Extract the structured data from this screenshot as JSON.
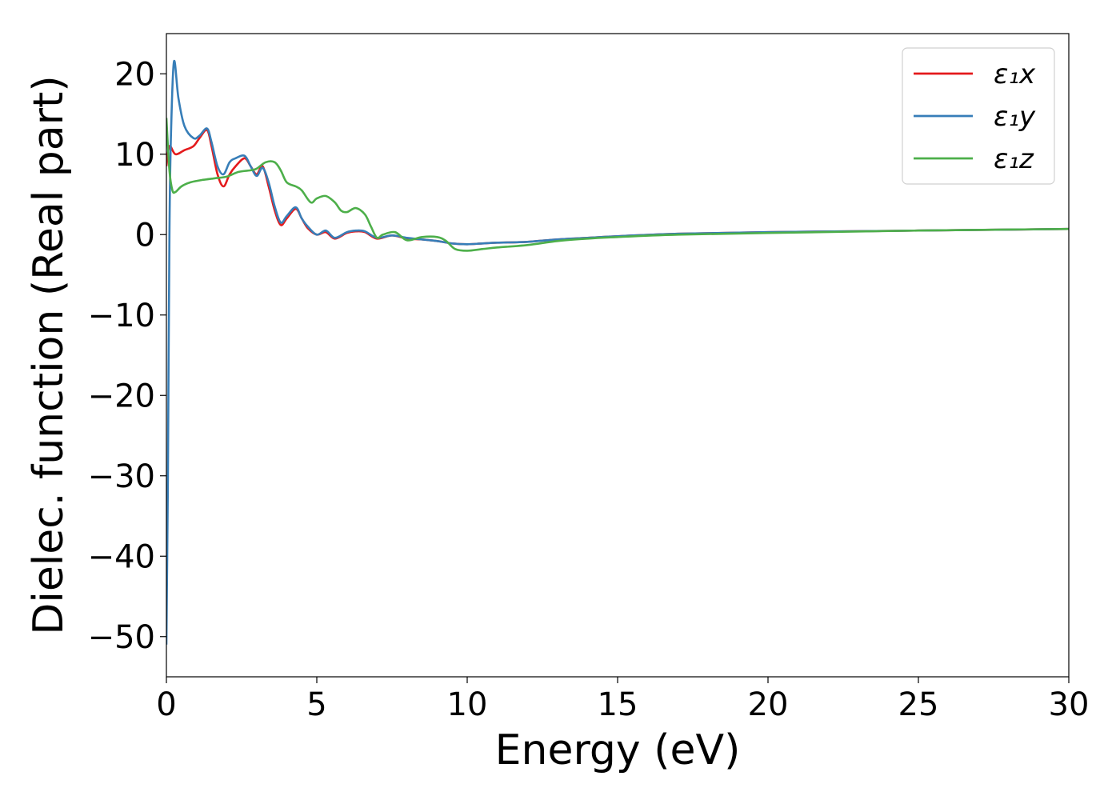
{
  "chart_data": {
    "type": "line",
    "xlabel": "Energy (eV)",
    "ylabel": "Dielec. function (Real part)",
    "xlim": [
      0,
      30
    ],
    "ylim": [
      -55,
      25
    ],
    "xticks": [
      0,
      5,
      10,
      15,
      20,
      25,
      30
    ],
    "xtick_labels": [
      "0",
      "5",
      "10",
      "15",
      "20",
      "25",
      "30"
    ],
    "yticks": [
      20,
      10,
      0,
      -10,
      -20,
      -30,
      -40,
      -50
    ],
    "ytick_labels": [
      "20",
      "10",
      "0",
      "−10",
      "−20",
      "−30",
      "−40",
      "−50"
    ],
    "grid": false,
    "legend_position": "top-right",
    "series": [
      {
        "name": "ε₁x",
        "color": "#e41a1c",
        "x": [
          0,
          0.1,
          0.3,
          0.6,
          0.9,
          1.1,
          1.35,
          1.5,
          1.7,
          1.9,
          2.1,
          2.3,
          2.6,
          2.8,
          3.0,
          3.2,
          3.4,
          3.6,
          3.8,
          4.0,
          4.3,
          4.5,
          4.7,
          5.0,
          5.3,
          5.6,
          6.0,
          6.3,
          6.6,
          7.0,
          7.5,
          8.0,
          8.5,
          9.0,
          9.5,
          10.0,
          10.5,
          11.0,
          12.0,
          13.0,
          14.0,
          15.0,
          17.0,
          20.0,
          25.0,
          30.0
        ],
        "y": [
          8.5,
          11.0,
          10.0,
          10.5,
          11.0,
          12.0,
          13.0,
          11.0,
          7.5,
          6.0,
          7.5,
          8.5,
          9.5,
          8.5,
          7.5,
          8.5,
          6.0,
          3.0,
          1.2,
          2.0,
          3.2,
          2.0,
          0.8,
          0.0,
          0.3,
          -0.5,
          0.2,
          0.4,
          0.3,
          -0.5,
          -0.1,
          -0.5,
          -0.6,
          -0.8,
          -1.1,
          -1.2,
          -1.1,
          -1.0,
          -0.9,
          -0.6,
          -0.4,
          -0.2,
          0.1,
          0.3,
          0.5,
          0.7
        ]
      },
      {
        "name": "ε₁y",
        "color": "#377eb8",
        "x": [
          0,
          0.05,
          0.1,
          0.15,
          0.25,
          0.4,
          0.6,
          0.9,
          1.1,
          1.35,
          1.5,
          1.7,
          1.9,
          2.1,
          2.3,
          2.6,
          2.8,
          3.0,
          3.2,
          3.4,
          3.6,
          3.8,
          4.0,
          4.3,
          4.5,
          4.7,
          5.0,
          5.3,
          5.6,
          6.0,
          6.3,
          6.6,
          7.0,
          7.5,
          8.0,
          8.5,
          9.0,
          9.5,
          10.0,
          10.5,
          11.0,
          12.0,
          13.0,
          14.0,
          15.0,
          17.0,
          20.0,
          25.0,
          30.0
        ],
        "y": [
          -51,
          -30,
          0,
          12,
          21.5,
          17,
          13.5,
          12.0,
          12.3,
          13.2,
          11.5,
          8.5,
          7.5,
          9.0,
          9.5,
          9.8,
          8.5,
          7.3,
          8.3,
          6.5,
          3.5,
          1.5,
          2.3,
          3.4,
          2.0,
          1.0,
          0.0,
          0.5,
          -0.4,
          0.3,
          0.5,
          0.4,
          -0.4,
          -0.1,
          -0.4,
          -0.6,
          -0.8,
          -1.1,
          -1.2,
          -1.1,
          -1.0,
          -0.9,
          -0.6,
          -0.4,
          -0.2,
          0.1,
          0.3,
          0.5,
          0.7
        ]
      },
      {
        "name": "ε₁z",
        "color": "#4daf4a",
        "x": [
          0,
          0.1,
          0.2,
          0.3,
          0.5,
          0.8,
          1.2,
          1.6,
          2.0,
          2.4,
          2.8,
          3.0,
          3.3,
          3.6,
          3.8,
          4.0,
          4.3,
          4.5,
          4.8,
          5.0,
          5.3,
          5.6,
          5.8,
          6.0,
          6.3,
          6.6,
          6.8,
          7.0,
          7.2,
          7.6,
          8.0,
          8.5,
          9.0,
          9.3,
          9.6,
          10.0,
          10.5,
          11.0,
          12.0,
          13.0,
          14.0,
          15.0,
          17.0,
          20.0,
          25.0,
          30.0
        ],
        "y": [
          14.5,
          8.0,
          5.5,
          5.3,
          6.0,
          6.5,
          6.8,
          7.0,
          7.2,
          7.8,
          8.0,
          8.2,
          9.0,
          9.0,
          8.0,
          6.5,
          6.0,
          5.5,
          4.0,
          4.5,
          4.8,
          4.0,
          3.0,
          2.8,
          3.3,
          2.5,
          1.0,
          -0.4,
          0.0,
          0.3,
          -0.7,
          -0.3,
          -0.3,
          -0.8,
          -1.8,
          -2.0,
          -1.8,
          -1.6,
          -1.3,
          -0.8,
          -0.5,
          -0.3,
          0.0,
          0.2,
          0.5,
          0.7
        ]
      }
    ]
  }
}
